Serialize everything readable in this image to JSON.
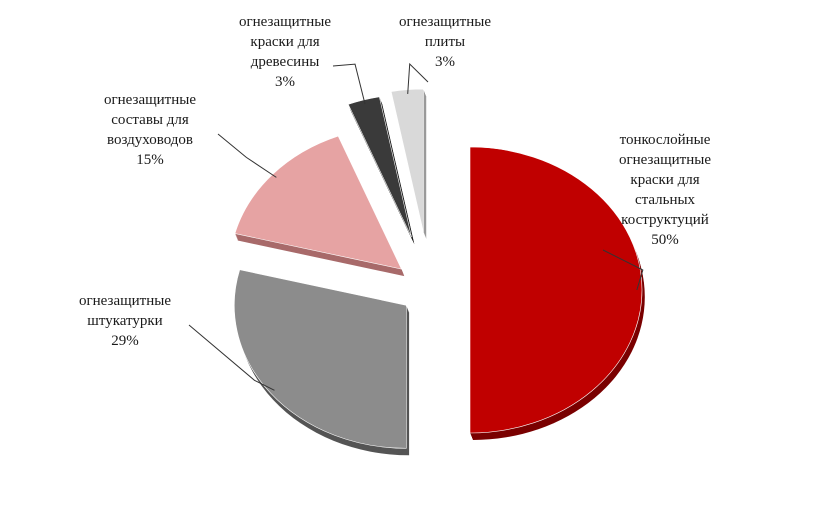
{
  "chart_data": {
    "type": "pie",
    "title": "",
    "legend": "none",
    "slices": [
      {
        "label_lines": [
          "тонкослойные",
          "огнезащитные",
          "краски для",
          "стальных",
          "коструктуций"
        ],
        "value": 50,
        "value_label": "50%",
        "color": "#c00000",
        "side_color": "#7a0000"
      },
      {
        "label_lines": [
          "огнезащитные",
          "штукатурки"
        ],
        "value": 29,
        "value_label": "29%",
        "color": "#8c8c8c",
        "side_color": "#555555"
      },
      {
        "label_lines": [
          "огнезащитные",
          "составы для",
          "воздуховодов"
        ],
        "value": 15,
        "value_label": "15%",
        "color": "#e6a3a3",
        "side_color": "#a86a6a"
      },
      {
        "label_lines": [
          "огнезащитные",
          "краски для",
          "древесины"
        ],
        "value": 3,
        "value_label": "3%",
        "color": "#3a3a3a",
        "side_color": "#1a1a1a"
      },
      {
        "label_lines": [
          "огнезащитные",
          "плиты"
        ],
        "value": 3,
        "value_label": "3%",
        "color": "#d9d9d9",
        "side_color": "#9a9a9a"
      }
    ]
  }
}
